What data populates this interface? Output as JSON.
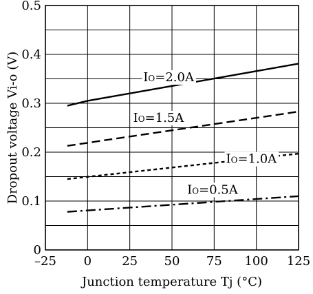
{
  "chart_data": {
    "type": "line",
    "title": "",
    "xlabel": "Junction temperature Tj (°C)",
    "ylabel": "Dropout voltage Vi-o (V)",
    "xlim": [
      -25,
      125
    ],
    "ylim": [
      0,
      0.5
    ],
    "xticks": [
      "–25",
      "0",
      "25",
      "50",
      "75",
      "100",
      "125"
    ],
    "xtick_values": [
      -25,
      0,
      25,
      50,
      75,
      100,
      125
    ],
    "yticks": [
      "0",
      "0.1",
      "0.2",
      "0.3",
      "0.4",
      "0.5"
    ],
    "ytick_values": [
      0,
      0.1,
      0.2,
      0.3,
      0.4,
      0.5
    ],
    "grid": true,
    "series": [
      {
        "name": "Io=2.0A",
        "style": "solid",
        "x": [
          -12,
          0,
          125
        ],
        "y": [
          0.295,
          0.305,
          0.381
        ]
      },
      {
        "name": "Io=1.5A",
        "style": "dashed",
        "x": [
          -12,
          125
        ],
        "y": [
          0.213,
          0.283
        ]
      },
      {
        "name": "Io=1.0A",
        "style": "dotted",
        "x": [
          -12,
          125
        ],
        "y": [
          0.145,
          0.197
        ]
      },
      {
        "name": "Io=0.5A",
        "style": "dashdot",
        "x": [
          -12,
          125
        ],
        "y": [
          0.078,
          0.11
        ]
      }
    ],
    "series_labels": [
      {
        "prefix": "I",
        "sub": "O",
        "suffix": "=2.0A"
      },
      {
        "prefix": "I",
        "sub": "O",
        "suffix": "=1.5A"
      },
      {
        "prefix": "I",
        "sub": "O",
        "suffix": "=1.0A"
      },
      {
        "prefix": "I",
        "sub": "O",
        "suffix": "=0.5A"
      }
    ],
    "colors": {
      "line": "#000000",
      "grid": "#000000",
      "background": "#ffffff"
    }
  }
}
